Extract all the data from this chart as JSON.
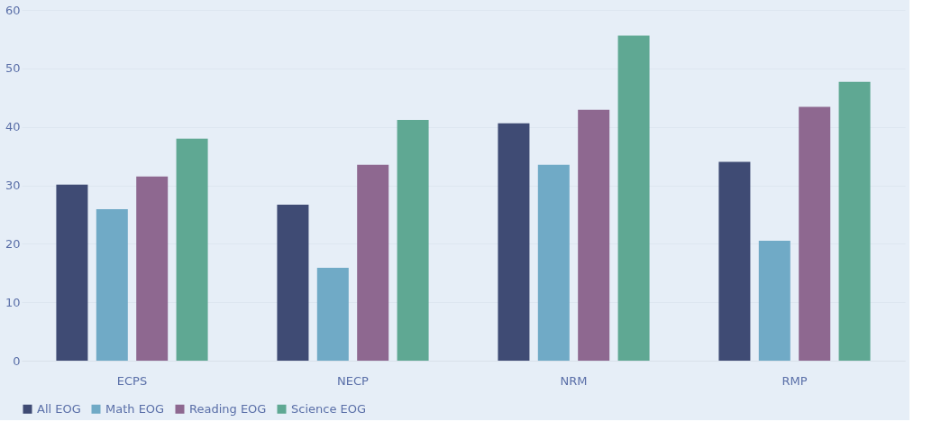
{
  "chart_data": {
    "type": "bar",
    "categories": [
      "ECPS",
      "NECP",
      "NRM",
      "RMP"
    ],
    "series": [
      {
        "name": "All EOG",
        "color": "#3f4b74",
        "values": [
          30.1,
          26.7,
          40.6,
          34.0
        ]
      },
      {
        "name": "Math EOG",
        "color": "#70aac6",
        "values": [
          25.9,
          15.9,
          33.5,
          20.5
        ]
      },
      {
        "name": "Reading EOG",
        "color": "#8e6890",
        "values": [
          31.5,
          33.5,
          42.9,
          43.4
        ]
      },
      {
        "name": "Science EOG",
        "color": "#5fa893",
        "values": [
          38.0,
          41.2,
          55.6,
          47.7
        ]
      }
    ],
    "ylim": [
      0,
      60
    ],
    "yticks": [
      0,
      10,
      20,
      30,
      40,
      50,
      60
    ],
    "grid": "y",
    "legend": "bottom"
  }
}
